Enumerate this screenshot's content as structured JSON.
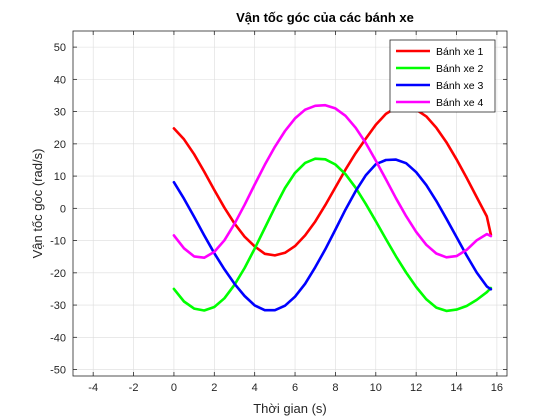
{
  "chart_data": {
    "type": "line",
    "title": "Vận tốc góc của các bánh xe",
    "xlabel": "Thời gian (s)",
    "ylabel": "Vận tốc góc (rad/s)",
    "xlim": [
      -5,
      16.5
    ],
    "ylim": [
      -52,
      55
    ],
    "xticks": [
      -4,
      -2,
      0,
      2,
      4,
      6,
      8,
      10,
      12,
      14,
      16
    ],
    "yticks": [
      -50,
      -40,
      -30,
      -20,
      -10,
      0,
      10,
      20,
      30,
      40,
      50
    ],
    "grid": true,
    "legend_position": "top-right",
    "series": [
      {
        "name": "Bánh xe 1",
        "color": "#ff0000",
        "x": [
          0,
          0.5,
          1,
          1.5,
          2,
          2.5,
          3,
          3.5,
          4,
          4.5,
          5,
          5.5,
          6,
          6.5,
          7,
          7.5,
          8,
          8.5,
          9,
          9.5,
          10,
          10.5,
          11,
          11.5,
          12,
          12.5,
          13,
          13.5,
          14,
          14.5,
          15,
          15.5,
          15.7
        ],
        "y": [
          24.8,
          21.4,
          16.8,
          11.4,
          5.7,
          0.2,
          -4.7,
          -8.8,
          -11.8,
          -14.1,
          -14.6,
          -13.8,
          -11.7,
          -8.4,
          -4.1,
          1.0,
          6.5,
          12.0,
          17.1,
          21.6,
          25.9,
          29.3,
          31.2,
          31.5,
          30.6,
          28.5,
          25.0,
          20.5,
          15.2,
          9.5,
          3.5,
          -2.5,
          -8.2
        ]
      },
      {
        "name": "Bánh xe 2",
        "color": "#00ff00",
        "x": [
          0,
          0.5,
          1,
          1.5,
          2,
          2.5,
          3,
          3.5,
          4,
          4.5,
          5,
          5.5,
          6,
          6.5,
          7,
          7.5,
          8,
          8.5,
          9,
          9.5,
          10,
          10.5,
          11,
          11.5,
          12,
          12.5,
          13,
          13.5,
          14,
          14.5,
          15,
          15.5,
          15.7
        ],
        "y": [
          -25.0,
          -28.9,
          -31.1,
          -31.7,
          -30.6,
          -27.9,
          -23.7,
          -18.5,
          -12.5,
          -6.1,
          0.3,
          6.3,
          11.0,
          14.1,
          15.4,
          15.2,
          13.6,
          10.6,
          6.4,
          1.4,
          -4.0,
          -9.5,
          -14.9,
          -19.9,
          -24.4,
          -28.2,
          -30.8,
          -31.8,
          -31.4,
          -30.3,
          -28.4,
          -26.0,
          -24.7
        ]
      },
      {
        "name": "Bánh xe 3",
        "color": "#0000ff",
        "x": [
          0,
          0.5,
          1,
          1.5,
          2,
          2.5,
          3,
          3.5,
          4,
          4.5,
          5,
          5.5,
          6,
          6.5,
          7,
          7.5,
          8,
          8.5,
          9,
          9.5,
          10,
          10.5,
          11,
          11.5,
          12,
          12.5,
          13,
          13.5,
          14,
          14.5,
          15,
          15.5,
          15.7
        ],
        "y": [
          8.1,
          3.0,
          -2.6,
          -8.4,
          -13.9,
          -18.9,
          -23.4,
          -27.2,
          -30.1,
          -31.6,
          -31.6,
          -30.2,
          -27.4,
          -23.4,
          -18.3,
          -12.7,
          -6.6,
          -0.4,
          5.3,
          10.2,
          13.7,
          15.0,
          15.1,
          14.0,
          11.2,
          7.2,
          2.3,
          -3.2,
          -8.9,
          -14.6,
          -19.9,
          -24.2,
          -25.1
        ]
      },
      {
        "name": "Bánh xe 4",
        "color": "#ff00ff",
        "x": [
          0,
          0.5,
          1,
          1.5,
          2,
          2.5,
          3,
          3.5,
          4,
          4.5,
          5,
          5.5,
          6,
          6.5,
          7,
          7.5,
          8,
          8.5,
          9,
          9.5,
          10,
          10.5,
          11,
          11.5,
          12,
          12.5,
          13,
          13.5,
          14,
          14.5,
          15,
          15.5,
          15.7
        ],
        "y": [
          -8.4,
          -12.4,
          -14.9,
          -15.3,
          -13.5,
          -9.9,
          -4.8,
          1.1,
          7.4,
          13.5,
          19.1,
          24.0,
          27.9,
          30.6,
          31.8,
          32.0,
          31.0,
          28.7,
          25.0,
          20.3,
          14.8,
          9.0,
          3.1,
          -2.4,
          -7.3,
          -11.3,
          -14.0,
          -15.2,
          -14.8,
          -12.9,
          -9.9,
          -8.0,
          -8.6
        ]
      }
    ]
  }
}
